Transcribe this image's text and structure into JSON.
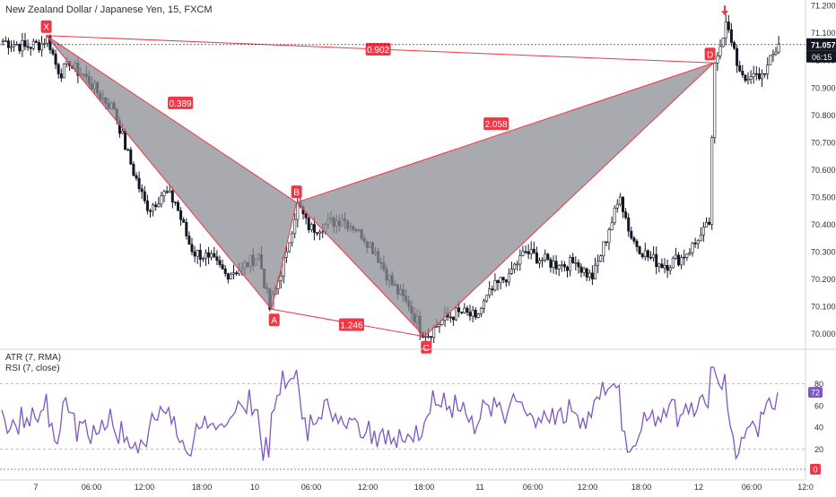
{
  "chart": {
    "title": "New Zealand Dollar / Japanese Yen, 15, FXCM",
    "price_axis": [
      "71.200",
      "71.100",
      "71.000",
      "70.900",
      "70.800",
      "70.700",
      "70.600",
      "70.500",
      "70.400",
      "70.300",
      "70.200",
      "70.100",
      "70.000"
    ],
    "last_price": "71.057",
    "countdown": "06:15",
    "time_axis": [
      "7",
      "06:00",
      "12:00",
      "18:00",
      "10",
      "06:00",
      "12:00",
      "18:00",
      "11",
      "06:00",
      "12:00",
      "18:00",
      "12",
      "06:00",
      "12:0"
    ],
    "colors": {
      "up": "#131722",
      "down": "#131722",
      "pattern_line": "#f23645",
      "pattern_fill": "#8c8e95",
      "label_bg": "#f23645",
      "rsi": "#7e57c2"
    }
  },
  "harmonic_pattern": {
    "points": [
      {
        "label": "X",
        "price": 71.09
      },
      {
        "label": "A",
        "price": 70.09
      },
      {
        "label": "B",
        "price": 70.48
      },
      {
        "label": "C",
        "price": 69.99
      },
      {
        "label": "D",
        "price": 70.99
      }
    ],
    "ratios": [
      "0.389",
      "2.058",
      "1.246",
      "0.902"
    ]
  },
  "indicators": {
    "atr_label": "ATR (7, RMA)",
    "rsi_label": "RSI (7, close)",
    "rsi_axis": [
      "80",
      "60",
      "40",
      "20"
    ],
    "rsi_value": "72",
    "atr_value": "0",
    "rsi_levels": [
      80,
      20
    ]
  },
  "chart_data": {
    "type": "candlestick",
    "title": "New Zealand Dollar / Japanese Yen, 15, FXCM",
    "ylim": [
      69.95,
      71.22
    ],
    "close_path": [
      {
        "bar": 0,
        "close": 71.07
      },
      {
        "bar": 8,
        "close": 71.05
      },
      {
        "bar": 14,
        "close": 71.06
      },
      {
        "bar": 16,
        "close": 71.09
      },
      {
        "bar": 20,
        "close": 70.95
      },
      {
        "bar": 24,
        "close": 70.98
      },
      {
        "bar": 30,
        "close": 70.94
      },
      {
        "bar": 34,
        "close": 70.88
      },
      {
        "bar": 40,
        "close": 70.82
      },
      {
        "bar": 46,
        "close": 70.62
      },
      {
        "bar": 52,
        "close": 70.45
      },
      {
        "bar": 58,
        "close": 70.52
      },
      {
        "bar": 62,
        "close": 70.48
      },
      {
        "bar": 68,
        "close": 70.3
      },
      {
        "bar": 74,
        "close": 70.28
      },
      {
        "bar": 80,
        "close": 70.22
      },
      {
        "bar": 86,
        "close": 70.24
      },
      {
        "bar": 92,
        "close": 70.29
      },
      {
        "bar": 96,
        "close": 70.09
      },
      {
        "bar": 102,
        "close": 70.3
      },
      {
        "bar": 106,
        "close": 70.48
      },
      {
        "bar": 110,
        "close": 70.38
      },
      {
        "bar": 116,
        "close": 70.4
      },
      {
        "bar": 122,
        "close": 70.42
      },
      {
        "bar": 128,
        "close": 70.38
      },
      {
        "bar": 134,
        "close": 70.3
      },
      {
        "bar": 140,
        "close": 70.18
      },
      {
        "bar": 146,
        "close": 70.1
      },
      {
        "bar": 152,
        "close": 69.99
      },
      {
        "bar": 158,
        "close": 70.05
      },
      {
        "bar": 164,
        "close": 70.08
      },
      {
        "bar": 170,
        "close": 70.06
      },
      {
        "bar": 176,
        "close": 70.16
      },
      {
        "bar": 182,
        "close": 70.22
      },
      {
        "bar": 188,
        "close": 70.3
      },
      {
        "bar": 194,
        "close": 70.27
      },
      {
        "bar": 200,
        "close": 70.25
      },
      {
        "bar": 206,
        "close": 70.26
      },
      {
        "bar": 212,
        "close": 70.2
      },
      {
        "bar": 218,
        "close": 70.38
      },
      {
        "bar": 222,
        "close": 70.5
      },
      {
        "bar": 226,
        "close": 70.35
      },
      {
        "bar": 232,
        "close": 70.28
      },
      {
        "bar": 238,
        "close": 70.25
      },
      {
        "bar": 244,
        "close": 70.28
      },
      {
        "bar": 250,
        "close": 70.34
      },
      {
        "bar": 254,
        "close": 70.4
      },
      {
        "bar": 256,
        "close": 70.99
      },
      {
        "bar": 258,
        "close": 71.05
      },
      {
        "bar": 260,
        "close": 71.14
      },
      {
        "bar": 264,
        "close": 70.98
      },
      {
        "bar": 268,
        "close": 70.93
      },
      {
        "bar": 274,
        "close": 70.95
      },
      {
        "bar": 279,
        "close": 71.06
      }
    ],
    "rsi_series": {
      "name": "RSI (7, close)",
      "levels": [
        80,
        20
      ],
      "last": 72
    }
  }
}
